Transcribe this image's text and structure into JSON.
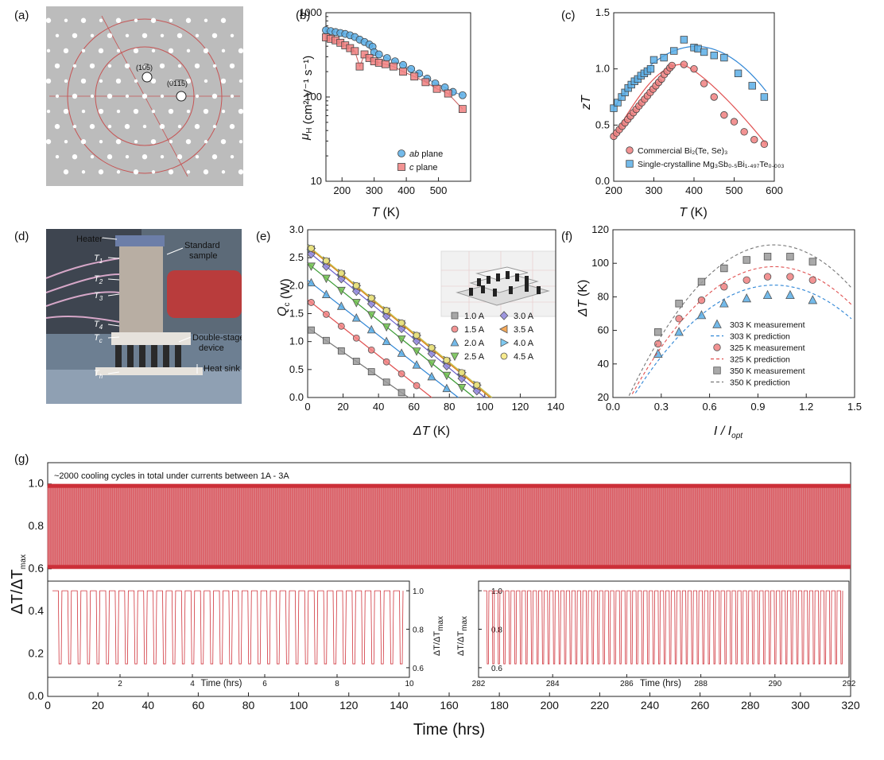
{
  "colors": {
    "blue": "#5aaee6",
    "red": "#f08080",
    "gray": "#9a9a9a",
    "line_blue": "#2f86d6",
    "line_red": "#e05050",
    "line_gray": "#777777",
    "cycle": "#d0343c"
  },
  "panels": {
    "a": {
      "label": "(a)",
      "spot1": "(10̅5)",
      "spot2": "(01̅1̅5)"
    },
    "b": {
      "label": "(b)"
    },
    "c": {
      "label": "(c)"
    },
    "d": {
      "label": "(d)",
      "annotations": {
        "heater": "Heater",
        "t1": "T",
        "t1s": "1",
        "t2": "T",
        "t2s": "2",
        "t3": "T",
        "t3s": "3",
        "t4": "T",
        "t4s": "4",
        "tc": "T",
        "tcs": "c",
        "th": "T",
        "ths": "h",
        "standard": "Standard",
        "sample": "sample",
        "double": "Double-stage",
        "device": "device",
        "sink": "Heat sink"
      }
    },
    "e": {
      "label": "(e)"
    },
    "f": {
      "label": "(f)"
    },
    "g": {
      "label": "(g)"
    }
  },
  "chart_data": [
    {
      "id": "b",
      "type": "scatter",
      "ylabel_main": "μ",
      "ylabel_sub": "H",
      "ylabel_unit": " (cm² V⁻¹ s⁻¹)",
      "xlabel": "T",
      "xlabel_unit": " (K)",
      "xlim": [
        150,
        600
      ],
      "ylim": [
        10,
        1000
      ],
      "yscale": "log",
      "xticks": [
        200,
        300,
        400,
        500
      ],
      "yticks": [
        10,
        100,
        1000
      ],
      "legend": {
        "position": "bottom-right",
        "items": [
          {
            "name_italic": "ab",
            "name": " plane"
          },
          {
            "name_italic": "c",
            "name": " plane"
          }
        ]
      },
      "series": [
        {
          "name": "ab plane",
          "marker": "circle",
          "color": "blue",
          "x": [
            150,
            165,
            180,
            195,
            210,
            225,
            240,
            255,
            270,
            285,
            295,
            300,
            315,
            340,
            365,
            390,
            415,
            440,
            465,
            490,
            520,
            545,
            575
          ],
          "y": [
            620,
            605,
            590,
            575,
            560,
            540,
            515,
            480,
            450,
            420,
            395,
            340,
            320,
            290,
            265,
            240,
            215,
            190,
            165,
            145,
            130,
            115,
            105
          ]
        },
        {
          "name": "c plane",
          "marker": "square",
          "color": "red",
          "x": [
            150,
            165,
            180,
            195,
            210,
            225,
            240,
            255,
            270,
            285,
            300,
            315,
            335,
            360,
            390,
            425,
            460,
            495,
            530,
            575
          ],
          "y": [
            510,
            490,
            470,
            440,
            410,
            380,
            350,
            230,
            320,
            290,
            265,
            255,
            245,
            230,
            200,
            175,
            150,
            125,
            110,
            72
          ]
        }
      ]
    },
    {
      "id": "c",
      "type": "scatter",
      "ylabel": "zT",
      "xlabel": "T",
      "xlabel_unit": " (K)",
      "xlim": [
        200,
        600
      ],
      "ylim": [
        0,
        1.5
      ],
      "xticks": [
        200,
        300,
        400,
        500,
        600
      ],
      "yticks": [
        0.0,
        0.5,
        1.0,
        1.5
      ],
      "legend": {
        "position": "bottom",
        "items": [
          {
            "name": "Commercial Bi₂(Te, Se)₃"
          },
          {
            "name": "Single-crystalline Mg₃Sb₀.₅Bi₁.₄₉₇Te₀.₀₀₃"
          }
        ]
      },
      "series": [
        {
          "name": "Commercial Bi2(Te, Se)3",
          "marker": "circle",
          "color": "red",
          "x": [
            200,
            207,
            214,
            221,
            228,
            235,
            242,
            249,
            256,
            263,
            270,
            277,
            284,
            291,
            298,
            305,
            312,
            319,
            326,
            333,
            340,
            345,
            375,
            400,
            425,
            450,
            475,
            500,
            525,
            550,
            575
          ],
          "y": [
            0.4,
            0.43,
            0.46,
            0.49,
            0.52,
            0.55,
            0.58,
            0.61,
            0.64,
            0.67,
            0.7,
            0.73,
            0.76,
            0.79,
            0.82,
            0.85,
            0.88,
            0.91,
            0.95,
            0.98,
            1.01,
            1.03,
            1.04,
            1.0,
            0.87,
            0.75,
            0.59,
            0.53,
            0.44,
            0.37,
            0.33
          ]
        },
        {
          "name": "Single-crystalline Mg3Sb0.5Bi1.497Te0.003",
          "marker": "square",
          "color": "blue",
          "x": [
            200,
            210,
            220,
            228,
            236,
            244,
            252,
            260,
            268,
            276,
            284,
            292,
            300,
            325,
            350,
            375,
            400,
            410,
            425,
            450,
            475,
            510,
            545,
            575
          ],
          "y": [
            0.65,
            0.7,
            0.75,
            0.79,
            0.83,
            0.86,
            0.89,
            0.91,
            0.94,
            0.96,
            0.98,
            1.0,
            1.08,
            1.1,
            1.16,
            1.26,
            1.19,
            1.18,
            1.15,
            1.12,
            1.1,
            0.96,
            0.85,
            0.75
          ]
        }
      ]
    },
    {
      "id": "e",
      "type": "scatter",
      "ylabel": "Q",
      "ylabel_sub": "c",
      "ylabel_unit": " (W)",
      "xlabel": "ΔT",
      "xlabel_unit": " (K)",
      "xlim": [
        0,
        140
      ],
      "ylim": [
        0,
        3.0
      ],
      "xticks": [
        0,
        20,
        40,
        60,
        80,
        100,
        120,
        140
      ],
      "yticks": [
        0.0,
        0.5,
        1.0,
        1.5,
        2.0,
        2.5,
        3.0
      ],
      "legend": {
        "position": "bottom-right",
        "items": [
          {
            "name": "1.0 A",
            "marker": "square",
            "color": "#9a9a9a"
          },
          {
            "name": "3.0 A",
            "marker": "diamond",
            "color": "#8f86dc"
          },
          {
            "name": "1.5 A",
            "marker": "circle",
            "color": "#f08080"
          },
          {
            "name": "3.5 A",
            "marker": "tri-left",
            "color": "#f39a3c"
          },
          {
            "name": "2.0 A",
            "marker": "tri-up",
            "color": "#5aaee6"
          },
          {
            "name": "4.0 A",
            "marker": "tri-right",
            "color": "#66c0ef"
          },
          {
            "name": "2.5 A",
            "marker": "tri-down",
            "color": "#6ec04e"
          },
          {
            "name": "4.5 A",
            "marker": "circle",
            "color": "#f6e77a"
          }
        ]
      },
      "series": [
        {
          "name": "1.0 A",
          "marker": "square",
          "color": "#9a9a9a",
          "line": "#777777",
          "q0": 1.25,
          "dtmax": 57
        },
        {
          "name": "1.5 A",
          "marker": "circle",
          "color": "#f08080",
          "line": "#e05050",
          "q0": 1.75,
          "dtmax": 70
        },
        {
          "name": "2.0 A",
          "marker": "tri-up",
          "color": "#5aaee6",
          "line": "#2f86d6",
          "q0": 2.1,
          "dtmax": 85
        },
        {
          "name": "2.5 A",
          "marker": "tri-down",
          "color": "#6ec04e",
          "line": "#3a9b32",
          "q0": 2.4,
          "dtmax": 94
        },
        {
          "name": "3.0 A",
          "marker": "diamond",
          "color": "#8f86dc",
          "line": "#6a60c8",
          "q0": 2.62,
          "dtmax": 100
        },
        {
          "name": "3.5 A",
          "marker": "tri-left",
          "color": "#f39a3c",
          "line": "#e07a10",
          "q0": 2.7,
          "dtmax": 103
        },
        {
          "name": "4.0 A",
          "marker": "tri-right",
          "color": "#66c0ef",
          "line": "#2f9ad6",
          "q0": 2.72,
          "dtmax": 104
        },
        {
          "name": "4.5 A",
          "marker": "circle",
          "color": "#f6e77a",
          "line": "#d8c23a",
          "q0": 2.72,
          "dtmax": 104
        }
      ]
    },
    {
      "id": "f",
      "type": "scatter",
      "ylabel": "ΔT",
      "ylabel_unit": " (K)",
      "xlabel": "I / I",
      "xlabel_sub": "opt",
      "xlim": [
        0,
        1.5
      ],
      "ylim": [
        20,
        120
      ],
      "xticks": [
        0.0,
        0.3,
        0.6,
        0.9,
        1.2,
        1.5
      ],
      "yticks": [
        20,
        40,
        60,
        80,
        100,
        120
      ],
      "legend": {
        "position": "bottom-right",
        "items": [
          {
            "name": "303 K measurement",
            "kind": "tri-up",
            "color": "#5aaee6"
          },
          {
            "name": "303 K prediction",
            "kind": "dash",
            "color": "#2f86d6"
          },
          {
            "name": "325 K measurement",
            "kind": "circle",
            "color": "#f08080"
          },
          {
            "name": "325 K prediction",
            "kind": "dash",
            "color": "#e05050"
          },
          {
            "name": "350 K measurement",
            "kind": "square",
            "color": "#9a9a9a"
          },
          {
            "name": "350 K prediction",
            "kind": "dash",
            "color": "#777777"
          }
        ]
      },
      "series": [
        {
          "name": "303 K",
          "marker": "tri-up",
          "color": "#5aaee6",
          "line": "#2f86d6",
          "peak": 87,
          "x": [
            0.28,
            0.41,
            0.55,
            0.69,
            0.83,
            0.96,
            1.1,
            1.24
          ],
          "y": [
            46,
            59,
            69,
            76,
            79,
            81,
            81,
            78
          ]
        },
        {
          "name": "325 K",
          "marker": "circle",
          "color": "#f08080",
          "line": "#e05050",
          "peak": 98,
          "x": [
            0.28,
            0.41,
            0.55,
            0.69,
            0.83,
            0.96,
            1.1,
            1.24
          ],
          "y": [
            52,
            67,
            78,
            86,
            90,
            92,
            92,
            90
          ]
        },
        {
          "name": "350 K",
          "marker": "square",
          "color": "#9a9a9a",
          "line": "#777777",
          "peak": 111,
          "x": [
            0.28,
            0.41,
            0.55,
            0.69,
            0.83,
            0.96,
            1.1,
            1.24
          ],
          "y": [
            59,
            76,
            89,
            97,
            102,
            104,
            104,
            101
          ]
        }
      ]
    },
    {
      "id": "g",
      "type": "line",
      "annotation": "~2000 cooling cycles in total under currents between 1A - 3A",
      "ylabel": "ΔT/ΔT",
      "ylabel_sub": "max",
      "xlabel": "Time (hrs)",
      "xlim": [
        0,
        320
      ],
      "ylim": [
        0.0,
        1.1
      ],
      "xticks": [
        0,
        20,
        40,
        60,
        80,
        100,
        120,
        140,
        160,
        180,
        200,
        220,
        240,
        260,
        280,
        300,
        320
      ],
      "yticks": [
        0.0,
        0.2,
        0.4,
        0.6,
        0.8,
        1.0
      ],
      "band": {
        "min": 0.6,
        "max": 1.0
      },
      "insets": [
        {
          "xlabel": "Time (hrs)",
          "xlim": [
            0,
            10
          ],
          "xticks": [
            2,
            4,
            6,
            8,
            10
          ],
          "ylim": [
            0.6,
            1.0
          ],
          "yticks": [
            0.6,
            0.8,
            1.0
          ],
          "ylabel": "ΔT/ΔT",
          "ylabel_sub": "max",
          "cycles": 37,
          "axis_side": "right"
        },
        {
          "xlabel": "Time (hrs)",
          "xlim": [
            282,
            292
          ],
          "xticks": [
            282,
            284,
            286,
            288,
            290,
            292
          ],
          "ylim": [
            0.6,
            1.0
          ],
          "yticks": [
            0.6,
            0.8,
            1.0
          ],
          "ylabel": "ΔT/ΔT",
          "ylabel_sub": "max",
          "cycles": 65,
          "axis_side": "left"
        }
      ]
    }
  ]
}
